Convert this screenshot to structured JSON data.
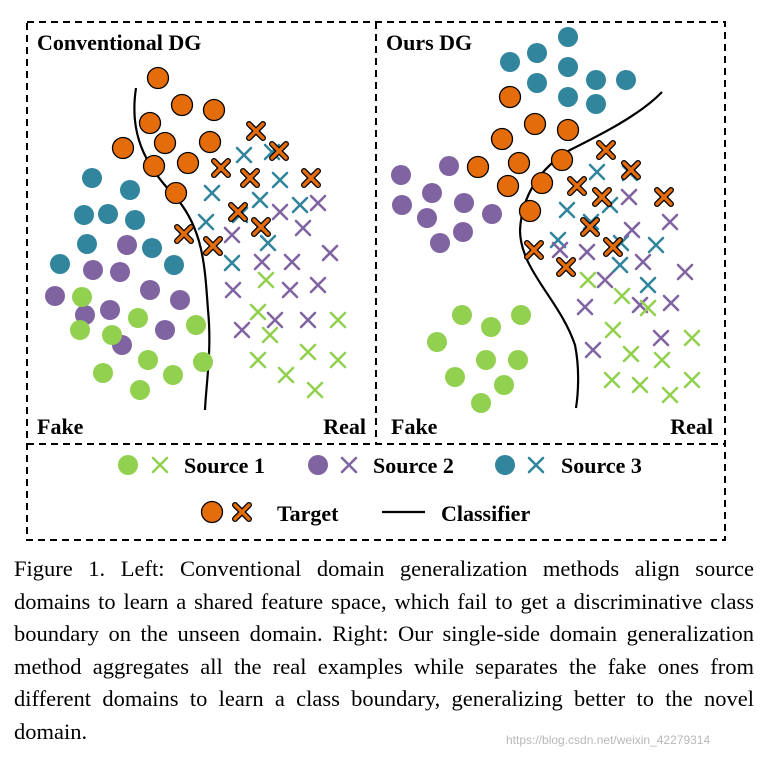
{
  "colors": {
    "source1": "#92d050",
    "source2": "#8064a2",
    "source3": "#31859c",
    "target": "#e46c0a"
  },
  "panels": {
    "left": {
      "title": "Conventional DG",
      "fake": "Fake",
      "real": "Real"
    },
    "right": {
      "title": "Ours DG",
      "fake": "Fake",
      "real": "Real"
    }
  },
  "legend": {
    "source1": "Source 1",
    "source2": "Source 2",
    "source3": "Source 3",
    "target": "Target",
    "classifier": "Classifier"
  },
  "caption": "Figure 1. Left: Conventional domain generalization methods align source domains to learn a shared feature space, which fail to get a discriminative class boundary on the unseen domain. Right: Our single-side domain generalization method aggregates all the real examples while separates the fake ones from different domains to learn a class boundary, generalizing better to the novel domain.",
  "watermark": "https://blog.csdn.net/weixin_42279314"
}
